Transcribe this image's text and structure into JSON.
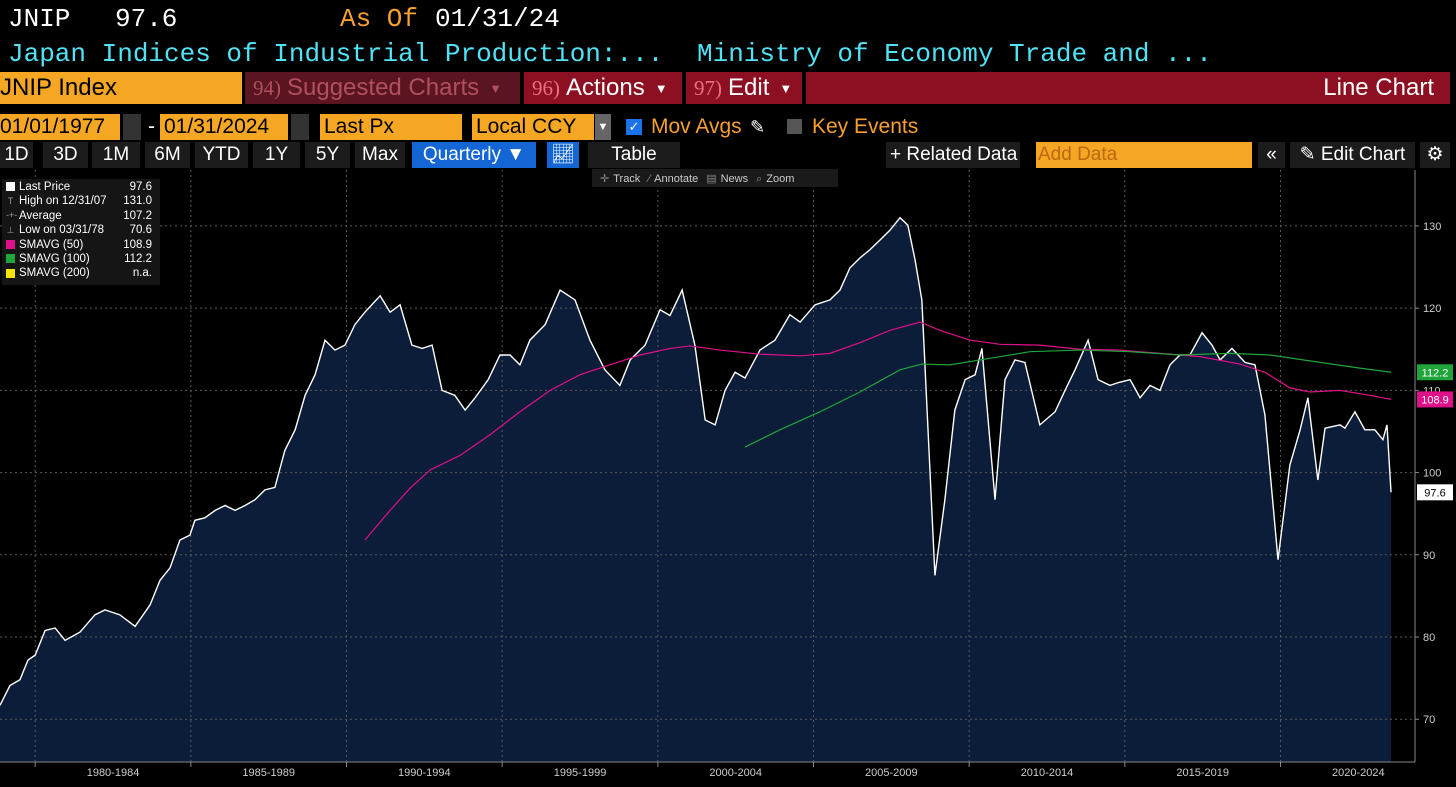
{
  "header": {
    "ticker": "JNIP",
    "price": "97.6",
    "as_of_label": "As Of",
    "as_of_date": "01/31/24",
    "description": "Japan Indices of Industrial Production:...",
    "source": "Ministry of Economy Trade and ..."
  },
  "toolbar": {
    "security": "JNIP Index",
    "menus": [
      {
        "num": "94)",
        "label": "Suggested Charts"
      },
      {
        "num": "96)",
        "label": "Actions"
      },
      {
        "num": "97)",
        "label": "Edit"
      }
    ],
    "chart_kind": "Line Chart"
  },
  "controls": {
    "start_date": "01/01/1977",
    "separator": "-",
    "end_date": "01/31/2024",
    "field": "Last Px",
    "currency": "Local CCY",
    "mov_avgs": "Mov Avgs",
    "key_events": "Key Events"
  },
  "periods": [
    "1D",
    "3D",
    "1M",
    "6M",
    "YTD",
    "1Y",
    "5Y",
    "Max"
  ],
  "frequency": "Quarterly",
  "table_button": "Table",
  "related_data": "+ Related Data",
  "add_data": "Add Data",
  "edit_chart": "Edit Chart",
  "chart_tools": [
    "Track",
    "Annotate",
    "News",
    "Zoom"
  ],
  "chart_data": {
    "type": "line",
    "legend": [
      {
        "label": "Last Price",
        "value": "97.6",
        "color": "#ffffff"
      },
      {
        "label": "High on 12/31/07",
        "value": "131.0"
      },
      {
        "label": "Average",
        "value": "107.2"
      },
      {
        "label": "Low on 03/31/78",
        "value": "70.6"
      },
      {
        "label": "SMAVG (50)",
        "value": "108.9",
        "color": "#e0108a"
      },
      {
        "label": "SMAVG (100)",
        "value": "112.2",
        "color": "#1fa53a"
      },
      {
        "label": "SMAVG (200)",
        "value": "n.a.",
        "color": "#f5e400"
      }
    ],
    "series": [
      {
        "name": "Last Price",
        "color": "#ffffff",
        "fill": "#0b1d38",
        "x": [
          1978.87,
          1979.19,
          1979.51,
          1979.77,
          1980.0,
          1980.32,
          1980.64,
          1980.96,
          1981.44,
          1981.92,
          1982.24,
          1982.72,
          1983.21,
          1983.69,
          1984.01,
          1984.33,
          1984.65,
          1984.97,
          1985.13,
          1985.45,
          1985.78,
          1986.1,
          1986.42,
          1986.74,
          1987.06,
          1987.38,
          1987.7,
          1988.02,
          1988.35,
          1988.67,
          1988.99,
          1989.31,
          1989.63,
          1989.95,
          1990.27,
          1990.59,
          1991.08,
          1991.4,
          1991.72,
          1992.1,
          1992.43,
          1992.75,
          1993.07,
          1993.48,
          1993.81,
          1994.13,
          1994.55,
          1994.93,
          1995.25,
          1995.57,
          1995.89,
          1996.38,
          1996.86,
          1997.34,
          1997.82,
          1998.3,
          1998.78,
          1999.11,
          1999.59,
          2000.07,
          2000.39,
          2000.78,
          2001.19,
          2001.52,
          2001.84,
          2002.16,
          2002.48,
          2002.8,
          2003.28,
          2003.76,
          2004.24,
          2004.57,
          2005.05,
          2005.53,
          2005.85,
          2006.17,
          2006.49,
          2006.81,
          2007.14,
          2007.46,
          2007.78,
          2008.03,
          2008.26,
          2008.48,
          2008.9,
          2009.22,
          2009.54,
          2009.87,
          2010.19,
          2010.41,
          2010.83,
          2011.15,
          2011.47,
          2011.79,
          2012.27,
          2012.76,
          2013.08,
          2013.4,
          2013.82,
          2014.14,
          2014.52,
          2014.84,
          2015.17,
          2015.49,
          2015.81,
          2016.13,
          2016.45,
          2016.77,
          2017.09,
          2017.48,
          2017.8,
          2018.06,
          2018.44,
          2018.86,
          2019.18,
          2019.5,
          2019.92,
          2020.3,
          2020.63,
          2020.88,
          2021.2,
          2021.43,
          2021.91,
          2022.07,
          2022.39,
          2022.71,
          2023.03,
          2023.29,
          2023.42,
          2023.55
        ],
        "values": [
          71.7,
          74.1,
          74.8,
          77.2,
          77.8,
          80.8,
          81.1,
          79.6,
          80.6,
          82.7,
          83.3,
          82.7,
          81.3,
          83.9,
          86.9,
          88.4,
          91.8,
          92.4,
          94.2,
          94.5,
          95.4,
          96.0,
          95.4,
          96.0,
          96.7,
          97.9,
          98.2,
          102.7,
          105.2,
          109.4,
          111.9,
          116.1,
          114.9,
          115.5,
          118.0,
          119.5,
          121.5,
          119.5,
          120.4,
          115.5,
          115.1,
          115.5,
          110.0,
          109.4,
          107.6,
          109.1,
          111.3,
          114.3,
          114.3,
          113.1,
          116.1,
          118.0,
          122.2,
          121.0,
          116.1,
          112.5,
          110.6,
          113.7,
          115.5,
          119.8,
          119.1,
          122.2,
          115.5,
          106.4,
          105.8,
          110.0,
          112.2,
          111.5,
          114.9,
          116.1,
          119.2,
          118.3,
          120.4,
          121.0,
          122.2,
          124.9,
          126.1,
          127.1,
          128.3,
          129.5,
          131.0,
          130.1,
          125.9,
          121.0,
          87.5,
          96.7,
          107.6,
          111.3,
          111.9,
          115.1,
          96.7,
          111.3,
          113.7,
          113.4,
          105.8,
          107.4,
          110.0,
          112.5,
          116.1,
          111.3,
          110.6,
          111.0,
          111.3,
          109.1,
          110.6,
          110.0,
          113.1,
          114.3,
          114.3,
          117.0,
          115.5,
          113.7,
          115.1,
          113.4,
          113.1,
          107.0,
          89.4,
          100.9,
          105.2,
          109.1,
          99.1,
          105.4,
          105.8,
          105.4,
          107.4,
          105.2,
          105.2,
          104.0,
          105.8,
          97.6
        ]
      },
      {
        "name": "SMAVG (50)",
        "color": "#e0108a",
        "x": [
          1990.59,
          1991.4,
          1992.04,
          1992.68,
          1993.65,
          1994.61,
          1995.57,
          1996.54,
          1997.5,
          1998.46,
          1999.43,
          2000.39,
          2001.03,
          2002.0,
          2003.28,
          2004.57,
          2005.53,
          2006.49,
          2007.46,
          2008.42,
          2009.06,
          2010.03,
          2010.99,
          2012.27,
          2013.56,
          2014.84,
          2016.13,
          2017.41,
          2018.7,
          2019.5,
          2020.3,
          2020.95,
          2021.91,
          2022.87,
          2023.55
        ],
        "values": [
          91.8,
          95.4,
          98.1,
          100.3,
          102.1,
          104.6,
          107.4,
          110.0,
          111.9,
          113.1,
          114.3,
          115.1,
          115.4,
          114.9,
          114.4,
          114.2,
          114.5,
          115.8,
          117.3,
          118.3,
          117.3,
          116.1,
          115.6,
          115.5,
          115.0,
          114.9,
          114.5,
          114.1,
          113.2,
          112.2,
          110.3,
          109.8,
          110.0,
          109.4,
          108.9
        ]
      },
      {
        "name": "SMAVG (100)",
        "color": "#1fa53a",
        "x": [
          2002.8,
          2003.92,
          2005.21,
          2006.49,
          2007.78,
          2008.48,
          2009.38,
          2010.67,
          2011.95,
          2013.56,
          2015.17,
          2016.77,
          2018.38,
          2019.66,
          2021.27,
          2022.55,
          2023.55
        ],
        "values": [
          103.1,
          105.2,
          107.4,
          109.8,
          112.5,
          113.2,
          113.1,
          113.9,
          114.7,
          114.9,
          114.7,
          114.3,
          114.5,
          114.3,
          113.4,
          112.7,
          112.2
        ]
      }
    ],
    "xlim": [
      1978.87,
      2024.32
    ],
    "xticks": [
      {
        "value": 1982.5,
        "label": "1980-1984"
      },
      {
        "value": 1987.5,
        "label": "1985-1989"
      },
      {
        "value": 1992.5,
        "label": "1990-1994"
      },
      {
        "value": 1997.5,
        "label": "1995-1999"
      },
      {
        "value": 2002.5,
        "label": "2000-2004"
      },
      {
        "value": 2007.5,
        "label": "2005-2009"
      },
      {
        "value": 2012.5,
        "label": "2010-2014"
      },
      {
        "value": 2017.5,
        "label": "2015-2019"
      },
      {
        "value": 2022.5,
        "label": "2020-2024"
      }
    ],
    "ylim": [
      64.8,
      136.8
    ],
    "yticks": [
      70,
      80,
      90,
      100,
      110,
      120,
      130
    ],
    "grid": true
  }
}
